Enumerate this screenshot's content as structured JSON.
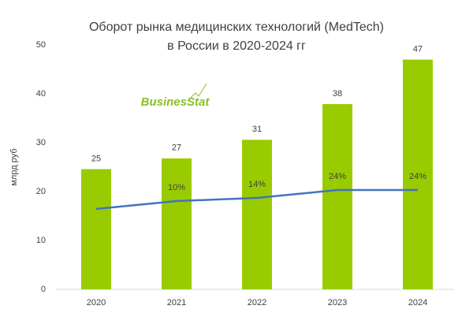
{
  "chart_data": {
    "type": "bar",
    "title": [
      "Оборот рынка медицинских технологий (MedTech)",
      "в России в 2020-2024 гг"
    ],
    "y_label": "млрд руб",
    "watermark": "BusinesStat",
    "categories": [
      "2020",
      "2021",
      "2022",
      "2023",
      "2024"
    ],
    "series": [
      {
        "type": "bar",
        "color": "#99cc00",
        "values": [
          24.6,
          26.8,
          30.6,
          37.9,
          47.0
        ],
        "value_labels": [
          "25",
          "27",
          "31",
          "38",
          "47"
        ]
      },
      {
        "type": "line",
        "axis": "y2",
        "color": "#4472c4",
        "values": [
          0,
          10,
          14,
          24,
          24
        ],
        "value_labels": [
          null,
          "10%",
          "14%",
          "24%",
          "24%"
        ]
      }
    ],
    "ylim": [
      0,
      50
    ],
    "yticks": [
      0,
      10,
      20,
      30,
      40,
      50
    ],
    "y2lim": [
      -102,
      208
    ]
  }
}
